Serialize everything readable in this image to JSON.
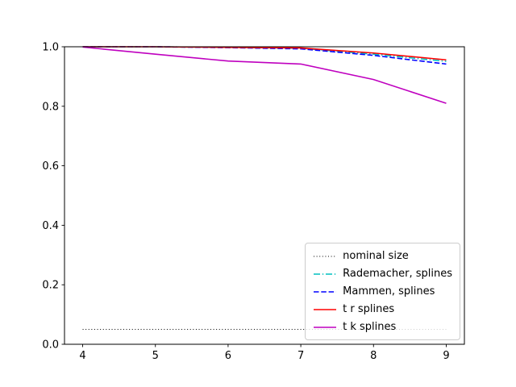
{
  "figure": {
    "background": "#ffffff",
    "axes_border_color": "#000000",
    "tick_color": "#000000",
    "legend_border_color": "#cccccc"
  },
  "chart_data": {
    "type": "line",
    "title": "",
    "xlabel": "",
    "ylabel": "",
    "grid": false,
    "legend_position": "lower right",
    "x": [
      4,
      5,
      6,
      7,
      8,
      9
    ],
    "xlim": [
      3.75,
      9.25
    ],
    "ylim": [
      0.0,
      1.0
    ],
    "x_ticks": [
      4,
      5,
      6,
      7,
      8,
      9
    ],
    "x_tick_labels": [
      "4",
      "5",
      "6",
      "7",
      "8",
      "9"
    ],
    "y_ticks": [
      0.0,
      0.2,
      0.4,
      0.6,
      0.8,
      1.0
    ],
    "y_tick_labels": [
      "0.0",
      "0.2",
      "0.4",
      "0.6",
      "0.8",
      "1.0"
    ],
    "series": [
      {
        "name": "nominal size",
        "color": "#000000",
        "style": "dotted",
        "width": 1,
        "values": [
          0.05,
          0.05,
          0.05,
          0.05,
          0.05,
          0.05
        ]
      },
      {
        "name": "Rademacher, splines",
        "color": "#00bfbf",
        "style": "dashdot",
        "width": 1.6,
        "values": [
          1.0,
          1.0,
          0.998,
          0.995,
          0.975,
          0.951
        ]
      },
      {
        "name": "Mammen, splines",
        "color": "#0000ff",
        "style": "dashed",
        "width": 1.6,
        "values": [
          1.0,
          1.0,
          0.997,
          0.993,
          0.971,
          0.942
        ]
      },
      {
        "name": "t r splines",
        "color": "#ff0000",
        "style": "solid",
        "width": 1.6,
        "values": [
          1.0,
          1.0,
          0.998,
          0.996,
          0.979,
          0.956
        ]
      },
      {
        "name": "t k splines",
        "color": "#bf00bf",
        "style": "solid",
        "width": 1.6,
        "values": [
          0.999,
          0.975,
          0.952,
          0.942,
          0.89,
          0.81
        ]
      }
    ]
  }
}
